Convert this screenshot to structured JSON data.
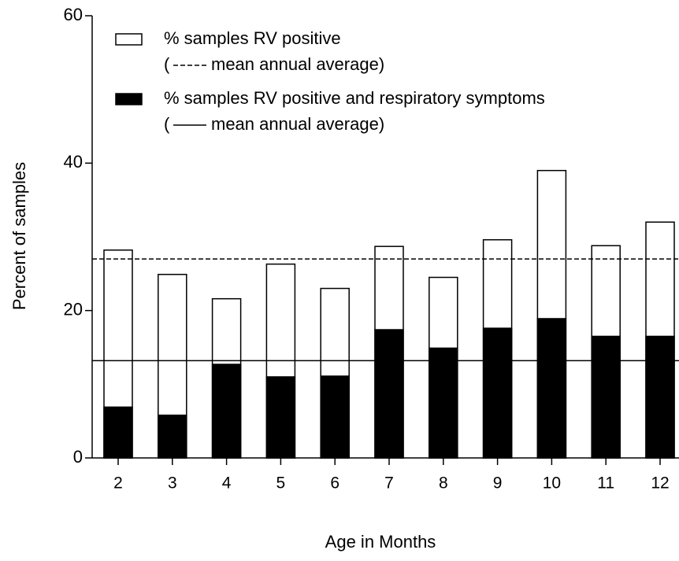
{
  "chart_data": {
    "type": "bar",
    "xlabel": "Age in Months",
    "ylabel": "Percent of samples",
    "categories": [
      2,
      3,
      4,
      5,
      6,
      7,
      8,
      9,
      10,
      11,
      12
    ],
    "series": [
      {
        "name": "% samples RV positive",
        "color": "#ffffff",
        "values": [
          28.2,
          24.9,
          21.6,
          26.3,
          23.0,
          28.7,
          24.5,
          29.6,
          39.0,
          28.8,
          32.0
        ],
        "reference": 27.0,
        "reference_style": "dashed",
        "reference_label": [
          "(",
          "mean annual average)"
        ]
      },
      {
        "name": "% samples RV positive and respiratory symptoms",
        "color": "#000000",
        "values": [
          6.9,
          5.8,
          12.7,
          11.0,
          11.1,
          17.4,
          14.9,
          17.6,
          18.9,
          16.5,
          16.5
        ],
        "reference": 13.2,
        "reference_style": "solid",
        "reference_label": [
          "(",
          "mean annual average)"
        ]
      }
    ],
    "ylim": [
      0,
      60
    ],
    "yticks": [
      0,
      20,
      40,
      60
    ]
  }
}
